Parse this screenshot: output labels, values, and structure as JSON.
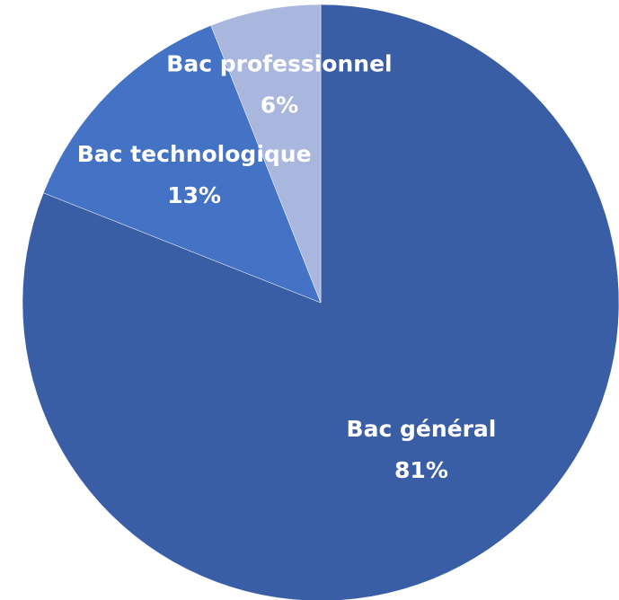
{
  "chart_data": {
    "type": "pie",
    "categories": [
      "Bac général",
      "Bac technologique",
      "Bac professionnel"
    ],
    "values": [
      81,
      13,
      6
    ],
    "value_labels": [
      "81%",
      "13%",
      "6%"
    ],
    "colors": [
      "#3a5ea6",
      "#4472c4",
      "#a9b6dd"
    ]
  }
}
